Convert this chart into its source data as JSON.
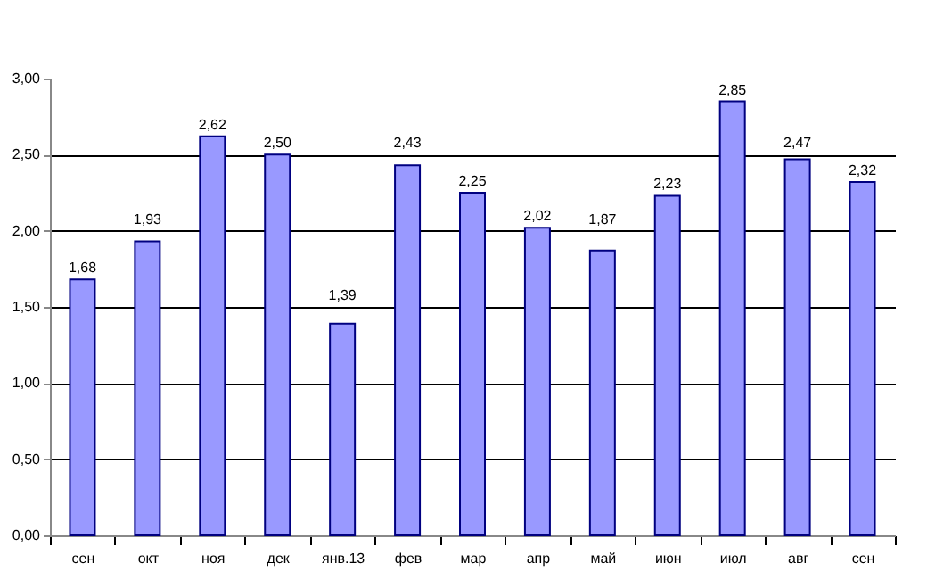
{
  "chart_data": {
    "type": "bar",
    "categories": [
      "сен",
      "окт",
      "ноя",
      "дек",
      "янв.13",
      "фев",
      "мар",
      "апр",
      "май",
      "июн",
      "июл",
      "авг",
      "сен"
    ],
    "values": [
      1.68,
      1.93,
      2.62,
      2.5,
      1.39,
      2.43,
      2.25,
      2.02,
      1.87,
      2.23,
      2.85,
      2.47,
      2.32
    ],
    "value_labels": [
      "1,68",
      "1,93",
      "2,62",
      "2,50",
      "1,39",
      "2,43",
      "2,25",
      "2,02",
      "1,87",
      "2,23",
      "2,85",
      "2,47",
      "2,32"
    ],
    "color": "#9999ff",
    "ylim": [
      0,
      3
    ],
    "yticks": [
      {
        "value": 0,
        "label": "0,00"
      },
      {
        "value": 0.5,
        "label": "0,50"
      },
      {
        "value": 1,
        "label": "1,00"
      },
      {
        "value": 1.5,
        "label": "1,50"
      },
      {
        "value": 2,
        "label": "2,00"
      },
      {
        "value": 2.5,
        "label": "2,50"
      },
      {
        "value": 3,
        "label": "3,00"
      }
    ],
    "grid": "y"
  }
}
